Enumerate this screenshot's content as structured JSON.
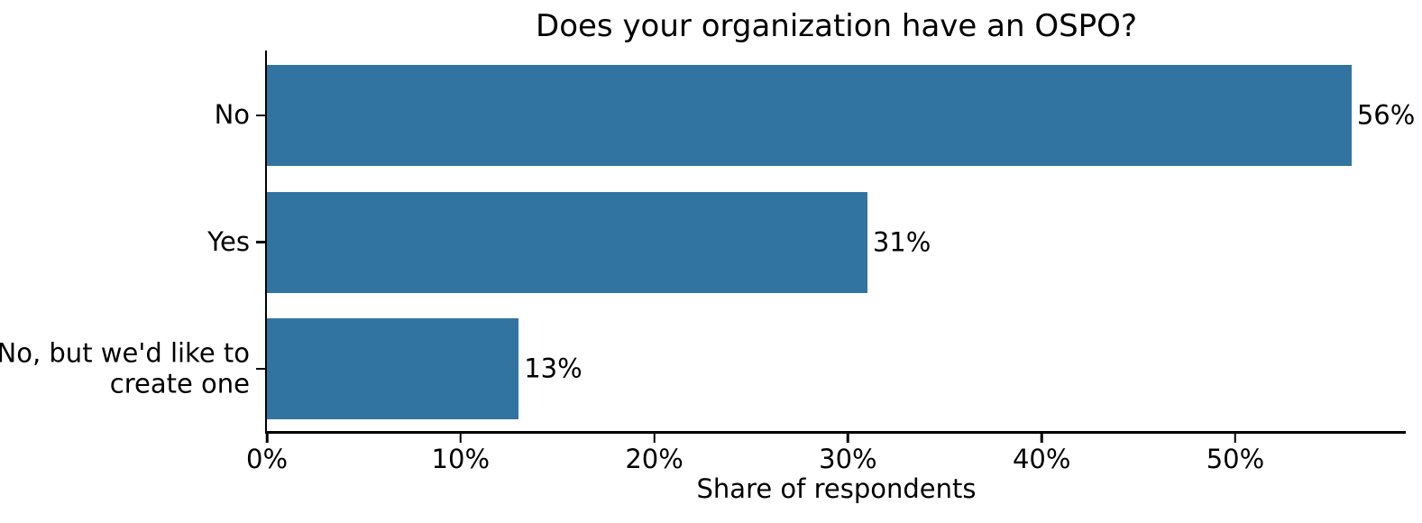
{
  "figure": {
    "title": "Does your organization have an OSPO?",
    "xlabel": "Share of respondents"
  },
  "chart_data": {
    "type": "bar",
    "orientation": "horizontal",
    "title": "Does your organization have an OSPO?",
    "xlabel": "Share of respondents",
    "ylabel": "",
    "categories": [
      "No",
      "Yes",
      "No, but we'd like to create one"
    ],
    "category_lines": [
      [
        "No"
      ],
      [
        "Yes"
      ],
      [
        "No, but we'd like to",
        "create one"
      ]
    ],
    "values": [
      56,
      31,
      13
    ],
    "value_labels": [
      "56%",
      "31%",
      "13%"
    ],
    "xlim": [
      0,
      58.8
    ],
    "xticks": [
      0,
      10,
      20,
      30,
      40,
      50
    ],
    "xtick_labels": [
      "0%",
      "10%",
      "20%",
      "30%",
      "40%",
      "50%"
    ],
    "bar_color": "#3274a1",
    "text_color": "#000000",
    "grid": false,
    "legend": null
  }
}
